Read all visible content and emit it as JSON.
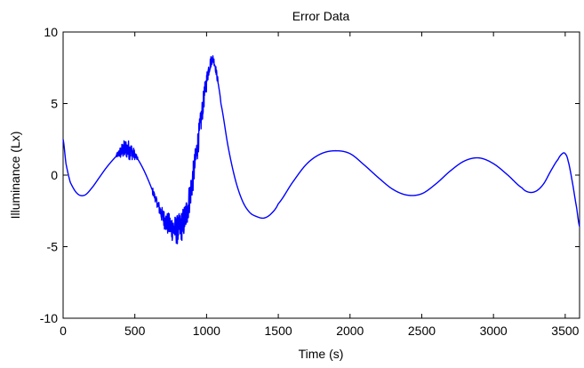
{
  "chart_data": {
    "type": "line",
    "title": "Error Data",
    "xlabel": "Time (s)",
    "ylabel": "Illuminance (Lx)",
    "xlim": [
      0,
      3600
    ],
    "ylim": [
      -10,
      10
    ],
    "x_ticks": [
      0,
      500,
      1000,
      1500,
      2000,
      2500,
      3000,
      3500
    ],
    "x_tick_labels": [
      "0",
      "500",
      "1000",
      "1500",
      "2000",
      "2500",
      "3000",
      "3500"
    ],
    "y_ticks": [
      -10,
      -5,
      0,
      5,
      10
    ],
    "y_tick_labels": [
      "-10",
      "-5",
      "0",
      "5",
      "10"
    ],
    "grid": false,
    "legend": "none",
    "line_color": "#0000ff",
    "series": [
      {
        "x": [
          0,
          20,
          50,
          100,
          150,
          200,
          250,
          300,
          350,
          400,
          430,
          450,
          500,
          550,
          600,
          650,
          700,
          750,
          800,
          850,
          900,
          950,
          1000,
          1030,
          1050,
          1080,
          1100,
          1150,
          1200,
          1250,
          1300,
          1350,
          1400,
          1450,
          1500,
          1600,
          1700,
          1800,
          1900,
          2000,
          2100,
          2200,
          2300,
          2400,
          2500,
          2600,
          2700,
          2800,
          2900,
          3000,
          3100,
          3200,
          3250,
          3300,
          3350,
          3400,
          3450,
          3480,
          3500,
          3520,
          3550,
          3580,
          3600
        ],
        "y": [
          2.5,
          0.8,
          -0.5,
          -1.3,
          -1.4,
          -0.9,
          -0.2,
          0.5,
          1.1,
          1.6,
          1.8,
          1.8,
          1.4,
          0.6,
          -0.5,
          -1.8,
          -3.0,
          -3.6,
          -3.8,
          -3.0,
          -0.5,
          3.0,
          6.5,
          7.9,
          8.0,
          6.5,
          5.0,
          2.0,
          -0.3,
          -1.8,
          -2.6,
          -2.9,
          -3.0,
          -2.7,
          -2.0,
          -0.5,
          0.8,
          1.5,
          1.7,
          1.5,
          0.7,
          -0.2,
          -1.0,
          -1.4,
          -1.3,
          -0.6,
          0.3,
          1.0,
          1.2,
          0.8,
          0.0,
          -0.9,
          -1.2,
          -1.1,
          -0.6,
          0.3,
          1.1,
          1.5,
          1.5,
          1.0,
          -0.5,
          -2.3,
          -3.6
        ]
      }
    ],
    "noise_bands": [
      {
        "x_start": 370,
        "x_end": 520,
        "amplitude": 0.7
      },
      {
        "x_start": 620,
        "x_end": 1080,
        "amplitude": 1.1
      }
    ]
  }
}
